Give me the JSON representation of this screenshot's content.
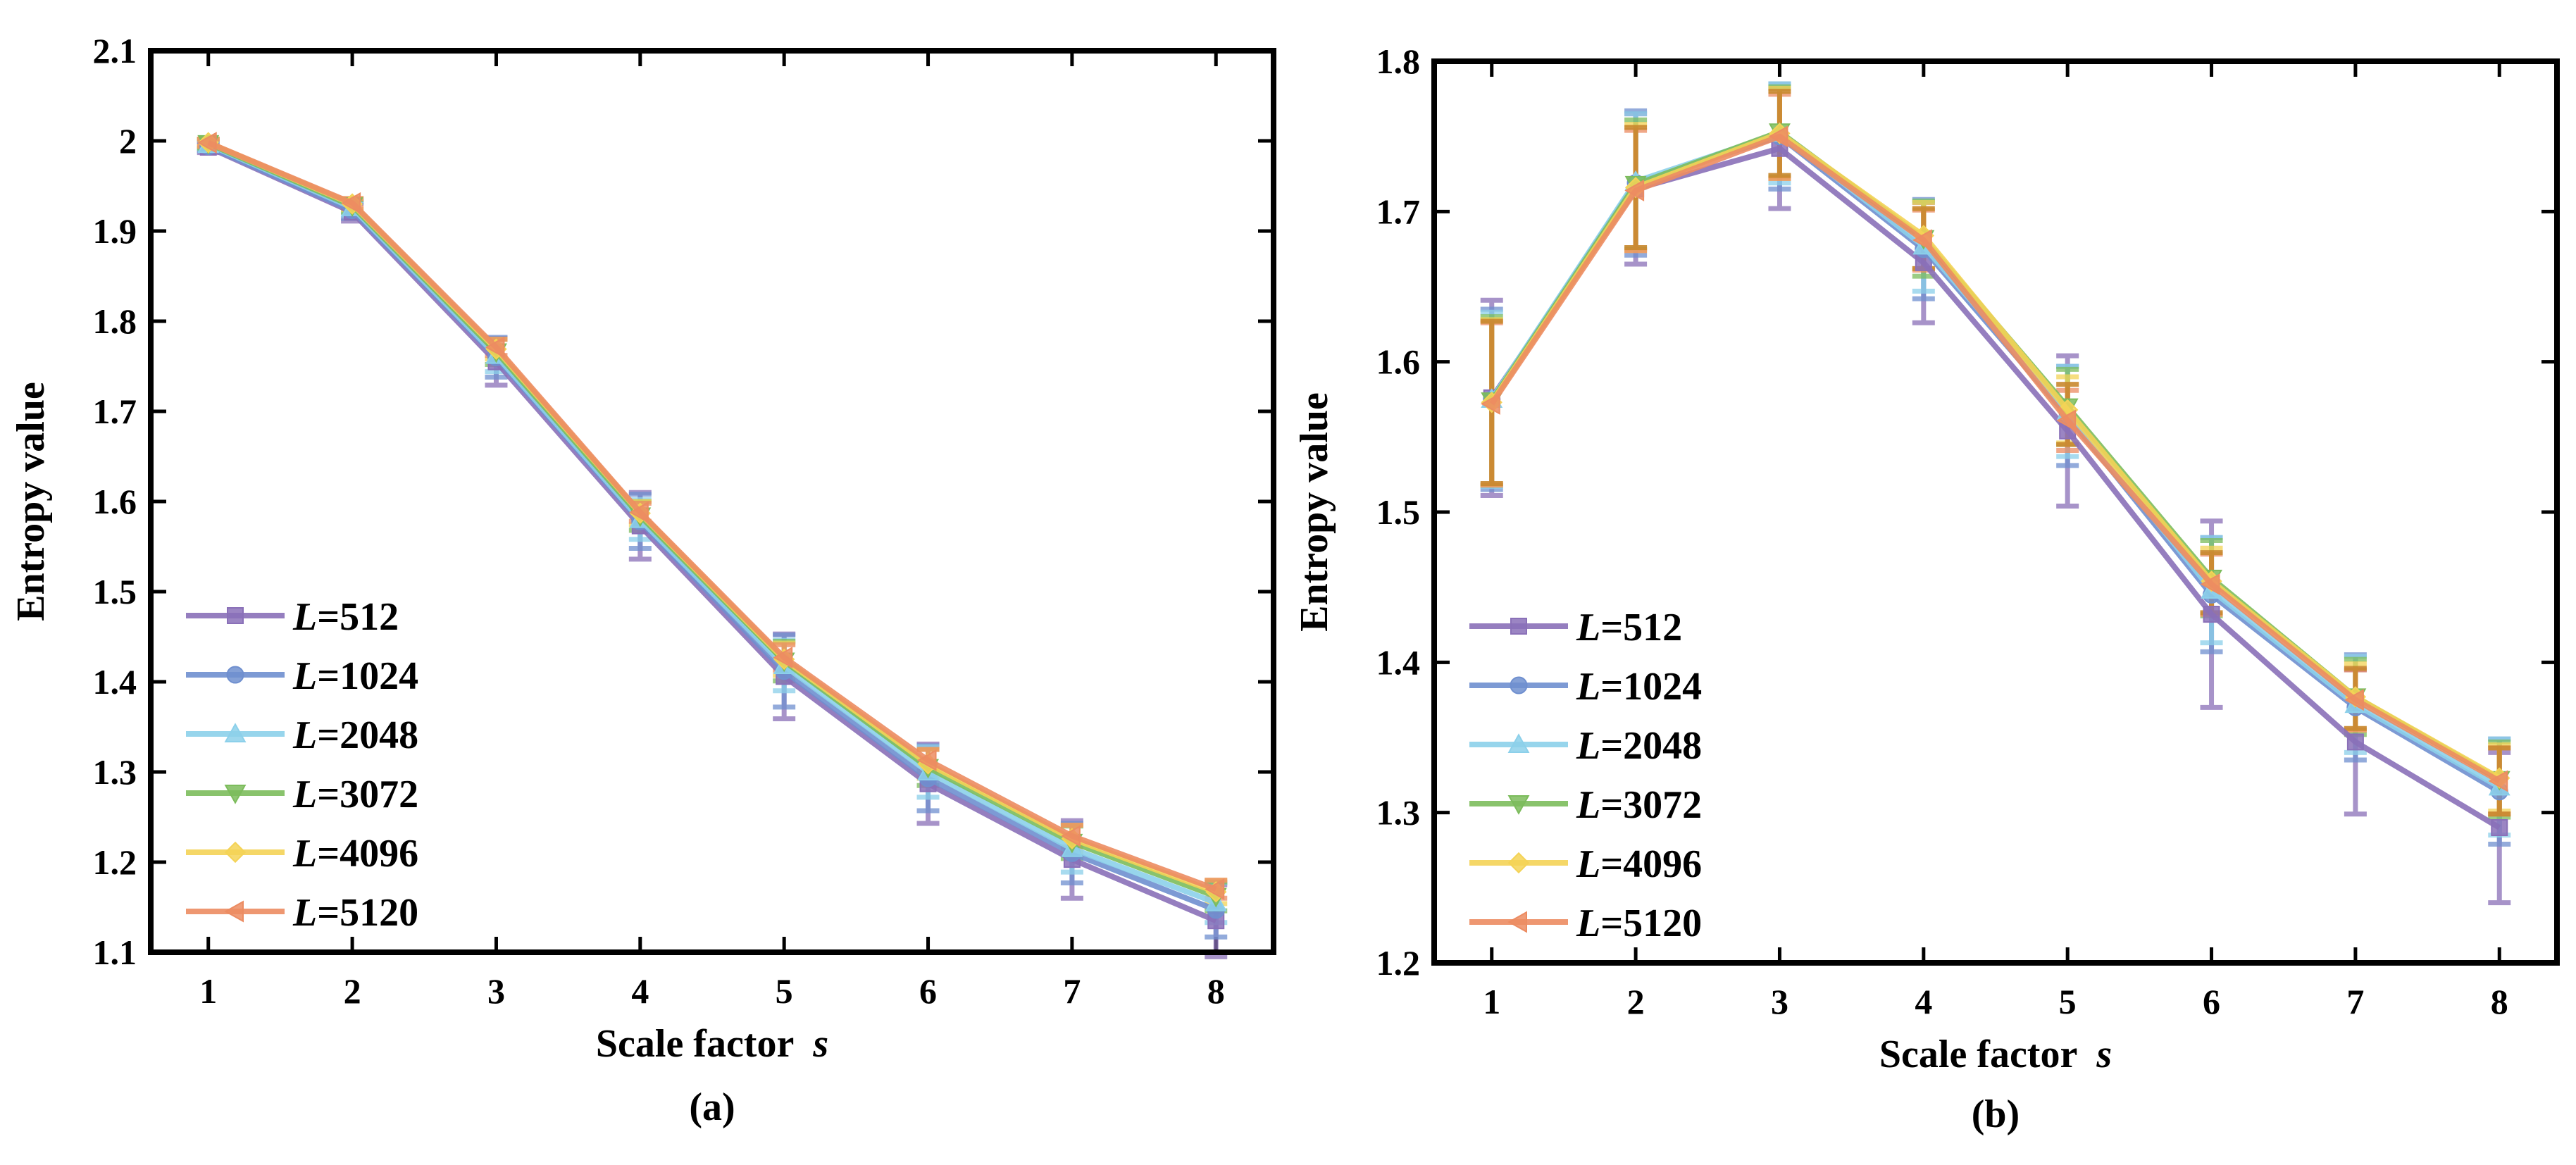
{
  "panels": [
    {
      "id": "a",
      "caption": "(a)",
      "chart_data": {
        "type": "line",
        "xlabel_prefix": "Scale factor ",
        "xlabel_var": "s",
        "ylabel": "Entropy value",
        "xlim": [
          0.6,
          8.4
        ],
        "ylim": [
          1.1,
          2.1
        ],
        "xticks": [
          1,
          2,
          3,
          4,
          5,
          6,
          7,
          8
        ],
        "xtick_labels": [
          "1",
          "2",
          "3",
          "4",
          "5",
          "6",
          "7",
          "8"
        ],
        "yticks": [
          1.1,
          1.2,
          1.3,
          1.4,
          1.5,
          1.6,
          1.7,
          1.8,
          1.9,
          2.0,
          2.1
        ],
        "ytick_labels": [
          "1.1",
          "1.2",
          "1.3",
          "1.4",
          "1.5",
          "1.6",
          "1.7",
          "1.8",
          "1.9",
          "2",
          "2.1"
        ],
        "legend_position": "bottom-left",
        "x": [
          1,
          2,
          3,
          4,
          5,
          6,
          7,
          8
        ],
        "series": [
          {
            "label_var": "L",
            "label_value": "=512",
            "color": "#8a70b8",
            "marker": "square",
            "values": [
              1.993,
              1.921,
              1.755,
              1.573,
              1.406,
              1.287,
              1.203,
              1.135
            ],
            "errors": [
              0.006,
              0.01,
              0.026,
              0.037,
              0.047,
              0.044,
              0.043,
              0.04
            ]
          },
          {
            "label_var": "L",
            "label_value": "=1024",
            "color": "#6f8fcf",
            "marker": "circle",
            "values": [
              1.994,
              1.923,
              1.76,
              1.578,
              1.412,
              1.293,
              1.21,
              1.147
            ],
            "errors": [
              0.005,
              0.009,
              0.022,
              0.03,
              0.04,
              0.036,
              0.033,
              0.03
            ]
          },
          {
            "label_var": "L",
            "label_value": "=2048",
            "color": "#8cd0ea",
            "marker": "triangle-up",
            "values": [
              1.996,
              1.926,
              1.762,
              1.58,
              1.418,
              1.3,
              1.215,
              1.155
            ],
            "errors": [
              0.005,
              0.008,
              0.018,
              0.022,
              0.028,
              0.028,
              0.026,
              0.022
            ]
          },
          {
            "label_var": "L",
            "label_value": "=3072",
            "color": "#7cbc5c",
            "marker": "triangle-down",
            "values": [
              1.997,
              1.928,
              1.766,
              1.584,
              1.423,
              1.305,
              1.222,
              1.162
            ],
            "errors": [
              0.005,
              0.007,
              0.014,
              0.016,
              0.022,
              0.02,
              0.018,
              0.016
            ]
          },
          {
            "label_var": "L",
            "label_value": "=4096",
            "color": "#f4d356",
            "marker": "diamond",
            "values": [
              1.998,
              1.93,
              1.769,
              1.587,
              1.425,
              1.309,
              1.226,
              1.167
            ],
            "errors": [
              0.004,
              0.006,
              0.011,
              0.013,
              0.018,
              0.016,
              0.015,
              0.013
            ]
          },
          {
            "label_var": "L",
            "label_value": "=5120",
            "color": "#ec8c62",
            "marker": "triangle-left",
            "values": [
              1.998,
              1.931,
              1.771,
              1.588,
              1.427,
              1.313,
              1.229,
              1.17
            ],
            "errors": [
              0.004,
              0.005,
              0.009,
              0.01,
              0.014,
              0.012,
              0.012,
              0.01
            ]
          }
        ]
      }
    },
    {
      "id": "b",
      "caption": "(b)",
      "chart_data": {
        "type": "line",
        "xlabel_prefix": "Scale factor ",
        "xlabel_var": "s",
        "ylabel": "Entropy value",
        "xlim": [
          0.6,
          8.4
        ],
        "ylim": [
          1.2,
          1.8
        ],
        "xticks": [
          1,
          2,
          3,
          4,
          5,
          6,
          7,
          8
        ],
        "xtick_labels": [
          "1",
          "2",
          "3",
          "4",
          "5",
          "6",
          "7",
          "8"
        ],
        "yticks": [
          1.2,
          1.3,
          1.4,
          1.5,
          1.6,
          1.7,
          1.8
        ],
        "ytick_labels": [
          "1.2",
          "1.3",
          "1.4",
          "1.5",
          "1.6",
          "1.7",
          "1.8"
        ],
        "legend_position": "bottom-left",
        "x": [
          1,
          2,
          3,
          4,
          5,
          6,
          7,
          8
        ],
        "series": [
          {
            "label_var": "L",
            "label_value": "=512",
            "color": "#8a70b8",
            "marker": "square",
            "values": [
              1.576,
              1.715,
              1.742,
              1.666,
              1.554,
              1.432,
              1.347,
              1.29
            ],
            "errors": [
              0.065,
              0.05,
              0.04,
              0.04,
              0.05,
              0.062,
              0.048,
              0.05
            ]
          },
          {
            "label_var": "L",
            "label_value": "=1024",
            "color": "#6f8fcf",
            "marker": "circle",
            "values": [
              1.575,
              1.719,
              1.75,
              1.675,
              1.564,
              1.445,
              1.37,
              1.314
            ],
            "errors": [
              0.06,
              0.048,
              0.035,
              0.033,
              0.033,
              0.038,
              0.035,
              0.035
            ]
          },
          {
            "label_var": "L",
            "label_value": "=2048",
            "color": "#8cd0ea",
            "marker": "triangle-up",
            "values": [
              1.575,
              1.72,
              1.752,
              1.677,
              1.567,
              1.448,
              1.372,
              1.317
            ],
            "errors": [
              0.058,
              0.045,
              0.033,
              0.03,
              0.03,
              0.035,
              0.032,
              0.032
            ]
          },
          {
            "label_var": "L",
            "label_value": "=3072",
            "color": "#7cbc5c",
            "marker": "triangle-down",
            "values": [
              1.574,
              1.718,
              1.753,
              1.682,
              1.57,
              1.456,
              1.377,
              1.322
            ],
            "errors": [
              0.056,
              0.043,
              0.03,
              0.025,
              0.025,
              0.025,
              0.025,
              0.025
            ]
          },
          {
            "label_var": "L",
            "label_value": "=4096",
            "color": "#f4d356",
            "marker": "diamond",
            "values": [
              1.573,
              1.716,
              1.752,
              1.684,
              1.568,
              1.454,
              1.377,
              1.323
            ],
            "errors": [
              0.055,
              0.042,
              0.03,
              0.022,
              0.022,
              0.022,
              0.022,
              0.022
            ]
          },
          {
            "label_var": "L",
            "label_value": "=5120",
            "color": "#ec8c62",
            "marker": "triangle-left",
            "values": [
              1.572,
              1.714,
              1.75,
              1.681,
              1.561,
              1.452,
              1.375,
              1.321
            ],
            "errors": [
              0.054,
              0.04,
              0.028,
              0.02,
              0.02,
              0.02,
              0.02,
              0.022
            ]
          }
        ],
        "overlay_errorbars": {
          "color": "#c9892f",
          "values": [
            1.573,
            1.716,
            1.752,
            1.682,
            1.565,
            1.453,
            1.376,
            1.321
          ],
          "errors": [
            0.054,
            0.04,
            0.028,
            0.02,
            0.02,
            0.02,
            0.02,
            0.022
          ]
        }
      }
    }
  ]
}
